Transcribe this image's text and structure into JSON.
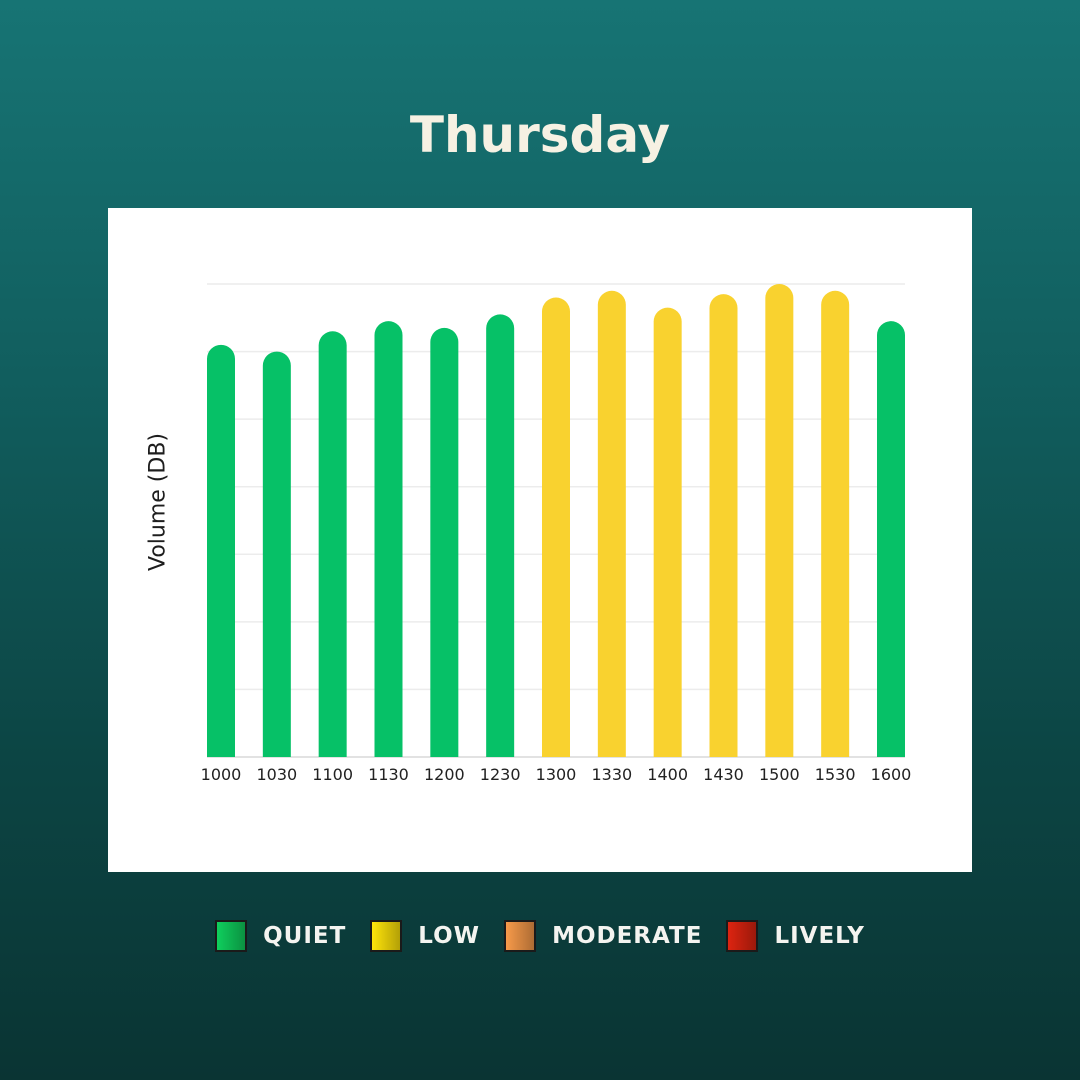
{
  "title": "Thursday",
  "colors": {
    "quiet": "#06c167",
    "low": "#f9d22f",
    "moderate": "#f58b3a",
    "lively": "#d6200e"
  },
  "legend": [
    {
      "label": "QUIET",
      "color": "#0fcf5d"
    },
    {
      "label": "LOW",
      "color": "#ffe40a"
    },
    {
      "label": "MODERATE",
      "color": "#f79a4a"
    },
    {
      "label": "LIVELY",
      "color": "#dd2410"
    }
  ],
  "chart_data": {
    "type": "bar",
    "title": "Thursday",
    "ylabel": "Volume (DB)",
    "xlabel": "",
    "ylim": [
      0,
      7
    ],
    "grid": true,
    "legend_position": "bottom",
    "categories": [
      "1000",
      "1030",
      "1100",
      "1130",
      "1200",
      "1230",
      "1300",
      "1330",
      "1400",
      "1430",
      "1500",
      "1530",
      "1600"
    ],
    "values": [
      6.1,
      6.0,
      6.3,
      6.45,
      6.35,
      6.55,
      6.8,
      6.9,
      6.65,
      6.85,
      7.0,
      6.9,
      6.45
    ],
    "levels": [
      "QUIET",
      "QUIET",
      "QUIET",
      "QUIET",
      "QUIET",
      "QUIET",
      "LOW",
      "LOW",
      "LOW",
      "LOW",
      "LOW",
      "LOW",
      "QUIET"
    ]
  }
}
